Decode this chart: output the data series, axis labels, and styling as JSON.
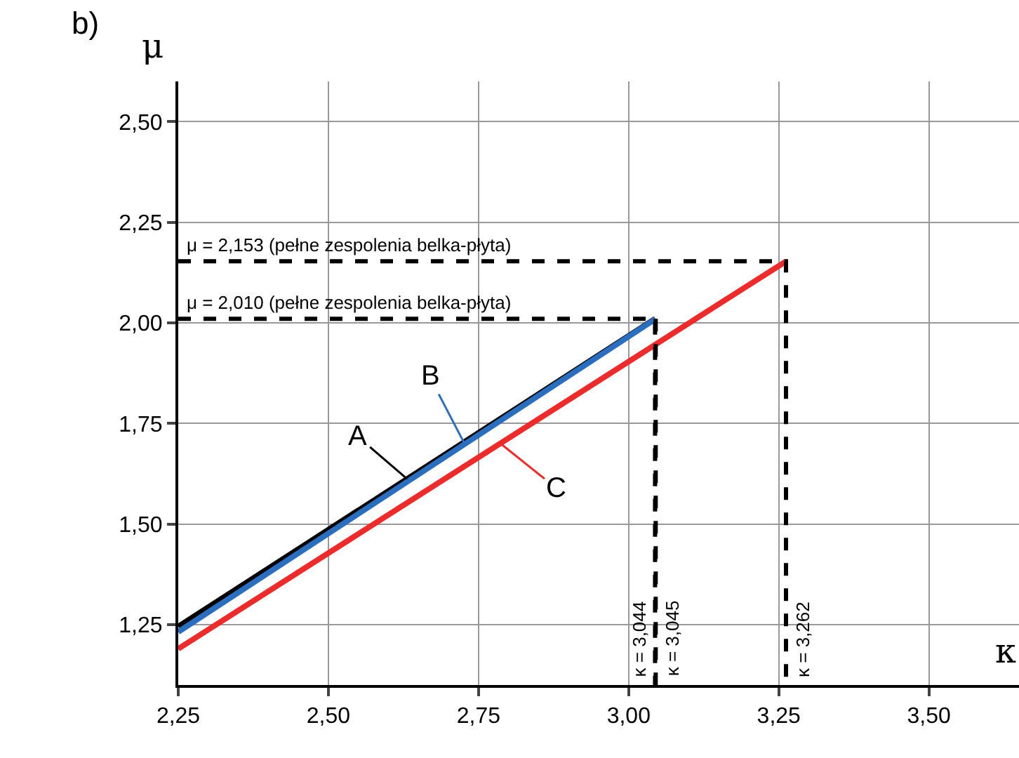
{
  "chart_data": {
    "type": "line",
    "xlabel": "κ",
    "ylabel": "μ",
    "series": [
      {
        "name": "A",
        "color": "#000000",
        "values": [
          1.245,
          2.01
        ],
        "x": [
          2.25,
          3.044
        ]
      },
      {
        "name": "B",
        "color": "#2a6ebf",
        "values": [
          1.232,
          2.01
        ],
        "x": [
          2.25,
          3.045
        ]
      },
      {
        "name": "C",
        "color": "#ee2b2b",
        "values": [
          1.19,
          2.153
        ],
        "x": [
          2.25,
          3.262
        ]
      },
      {
        "color": "#000000",
        "values": [
          2.01,
          2.01,
          1.1
        ],
        "x": [
          2.25,
          3.044,
          3.044
        ],
        "line_style": "dashed"
      },
      {
        "color": "#000000",
        "values": [
          2.01,
          1.1
        ],
        "x": [
          3.045,
          3.045
        ],
        "line_style": "dashed"
      },
      {
        "color": "#000000",
        "values": [
          2.153,
          2.153,
          1.1
        ],
        "x": [
          2.25,
          3.262,
          3.262
        ],
        "line_style": "dashed"
      }
    ],
    "xlim": [
      2.25,
      3.65
    ],
    "ylim": [
      1.1,
      2.6
    ],
    "xticks": [
      {
        "value": 2.25,
        "label": "2,25"
      },
      {
        "value": 2.5,
        "label": "2,50"
      },
      {
        "value": 2.75,
        "label": "2,75"
      },
      {
        "value": 3.0,
        "label": "3,00"
      },
      {
        "value": 3.25,
        "label": "3,25"
      },
      {
        "value": 3.5,
        "label": "3,50"
      }
    ],
    "yticks": [
      {
        "value": 1.25,
        "label": "1,25"
      },
      {
        "value": 1.5,
        "label": "1,50"
      },
      {
        "value": 1.75,
        "label": "1,75"
      },
      {
        "value": 2.0,
        "label": "2,00"
      },
      {
        "value": 2.25,
        "label": "2,25"
      },
      {
        "value": 2.5,
        "label": "2,50"
      }
    ],
    "grid": true,
    "line_style": "solid",
    "marker": "none",
    "annotations": [
      "b)",
      {
        "text": "μ = 2,153 (pełne zespolenia belka-płyta)",
        "x": 2.25,
        "y": 2.153
      },
      {
        "text": "μ = 2,010 (pełne zespolenia belka-płyta)",
        "x": 2.25,
        "y": 2.01
      },
      {
        "text": "κ = 3,044",
        "x": 3.044,
        "y": 1.1
      },
      {
        "text": "κ = 3,045",
        "x": 3.045,
        "y": 1.1
      },
      {
        "text": "κ = 3,262",
        "x": 3.262,
        "y": 1.1
      }
    ]
  }
}
